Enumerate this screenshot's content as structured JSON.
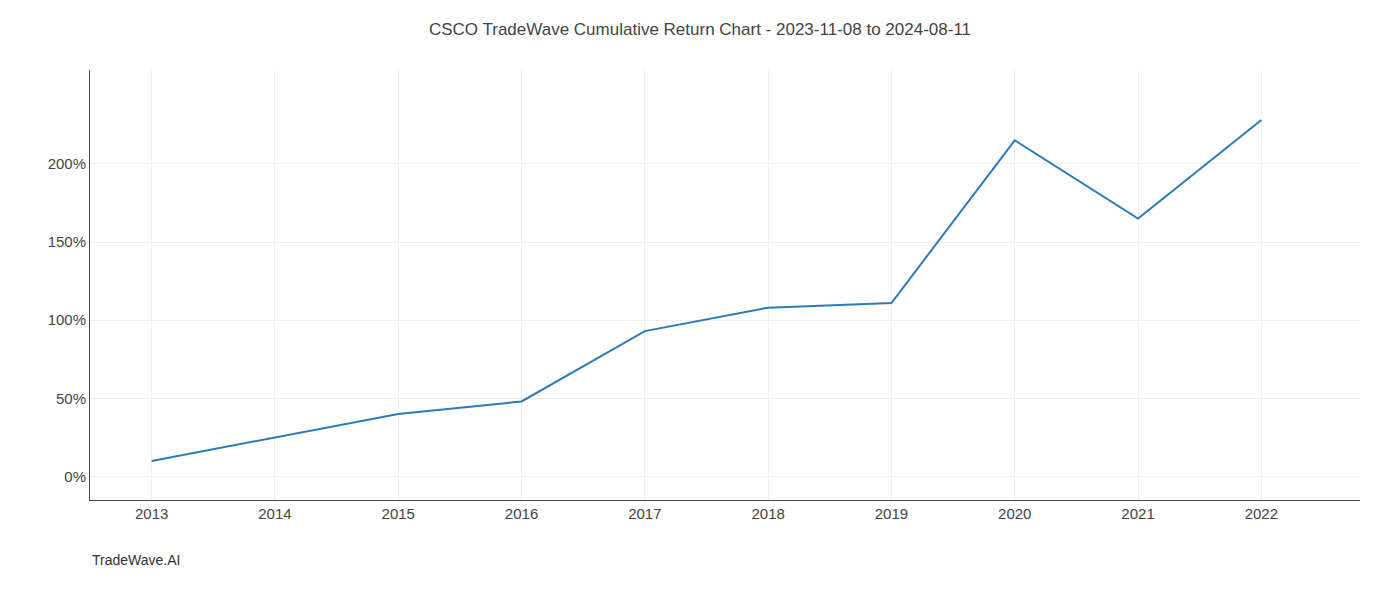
{
  "chart_data": {
    "type": "line",
    "title": "CSCO TradeWave Cumulative Return Chart - 2023-11-08 to 2024-08-11",
    "annotations": [
      "TradeWave.AI"
    ],
    "x": [
      2013,
      2014,
      2015,
      2016,
      2017,
      2018,
      2019,
      2020,
      2021,
      2022
    ],
    "values": [
      10,
      25,
      40,
      48,
      93,
      108,
      111,
      215,
      165,
      228
    ],
    "color": "#2b7bba",
    "xlim": [
      2012.5,
      2022.8
    ],
    "ylim": [
      -15,
      260
    ],
    "xticks": [
      2013,
      2014,
      2015,
      2016,
      2017,
      2018,
      2019,
      2020,
      2021,
      2022
    ],
    "yticks": [
      {
        "value": 0,
        "label": "0%"
      },
      {
        "value": 50,
        "label": "50%"
      },
      {
        "value": 100,
        "label": "100%"
      },
      {
        "value": 150,
        "label": "150%"
      },
      {
        "value": 200,
        "label": "200%"
      }
    ],
    "grid": true
  }
}
